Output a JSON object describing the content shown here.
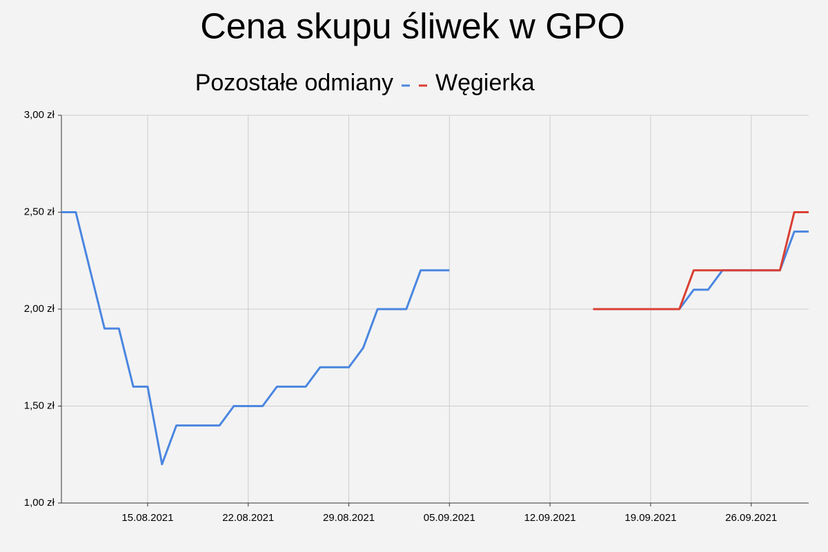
{
  "chart_data": {
    "type": "line",
    "title": "Cena skupu śliwek w GPO",
    "x": [
      "09.08.2021",
      "10.08.2021",
      "11.08.2021",
      "12.08.2021",
      "13.08.2021",
      "14.08.2021",
      "15.08.2021",
      "16.08.2021",
      "17.08.2021",
      "18.08.2021",
      "19.08.2021",
      "20.08.2021",
      "21.08.2021",
      "22.08.2021",
      "23.08.2021",
      "24.08.2021",
      "25.08.2021",
      "26.08.2021",
      "27.08.2021",
      "28.08.2021",
      "29.08.2021",
      "30.08.2021",
      "31.08.2021",
      "01.09.2021",
      "02.09.2021",
      "03.09.2021",
      "04.09.2021",
      "05.09.2021",
      "06.09.2021",
      "07.09.2021",
      "08.09.2021",
      "09.09.2021",
      "10.09.2021",
      "11.09.2021",
      "12.09.2021",
      "13.09.2021",
      "14.09.2021",
      "15.09.2021",
      "16.09.2021",
      "17.09.2021",
      "18.09.2021",
      "19.09.2021",
      "20.09.2021",
      "21.09.2021",
      "22.09.2021",
      "23.09.2021",
      "24.09.2021",
      "25.09.2021",
      "26.09.2021",
      "27.09.2021",
      "28.09.2021",
      "29.09.2021",
      "30.09.2021"
    ],
    "series": [
      {
        "name": "Pozostałe odmiany",
        "color": "#4a86e0",
        "values": [
          2.5,
          2.5,
          2.2,
          1.9,
          1.9,
          1.6,
          1.6,
          1.2,
          1.4,
          1.4,
          1.4,
          1.4,
          1.5,
          1.5,
          1.5,
          1.6,
          1.6,
          1.6,
          1.7,
          1.7,
          1.7,
          1.8,
          2.0,
          2.0,
          2.0,
          2.2,
          2.2,
          2.2,
          null,
          null,
          null,
          null,
          null,
          null,
          null,
          null,
          null,
          2.0,
          2.0,
          2.0,
          2.0,
          2.0,
          2.0,
          2.0,
          2.1,
          2.1,
          2.2,
          2.2,
          2.2,
          2.2,
          2.2,
          2.4,
          2.4
        ]
      },
      {
        "name": "Węgierka",
        "color": "#d93f33",
        "values": [
          null,
          null,
          null,
          null,
          null,
          null,
          null,
          null,
          null,
          null,
          null,
          null,
          null,
          null,
          null,
          null,
          null,
          null,
          null,
          null,
          null,
          null,
          null,
          null,
          null,
          null,
          null,
          null,
          null,
          null,
          null,
          null,
          null,
          null,
          null,
          null,
          null,
          2.0,
          2.0,
          2.0,
          2.0,
          2.0,
          2.0,
          2.0,
          2.2,
          2.2,
          2.2,
          2.2,
          2.2,
          2.2,
          2.2,
          2.5,
          2.5
        ]
      }
    ],
    "xticks": [
      "15.08.2021",
      "22.08.2021",
      "29.08.2021",
      "05.09.2021",
      "12.09.2021",
      "19.09.2021",
      "26.09.2021"
    ],
    "ylim": [
      1,
      3
    ],
    "yticks": [
      {
        "value": 1,
        "label": "1,00 zł"
      },
      {
        "value": 1.5,
        "label": "1,50 zł"
      },
      {
        "value": 2,
        "label": "2,00 zł"
      },
      {
        "value": 2.5,
        "label": "2,50 zł"
      },
      {
        "value": 3,
        "label": "3,00 zł"
      }
    ],
    "grid": true,
    "legend": "top"
  }
}
